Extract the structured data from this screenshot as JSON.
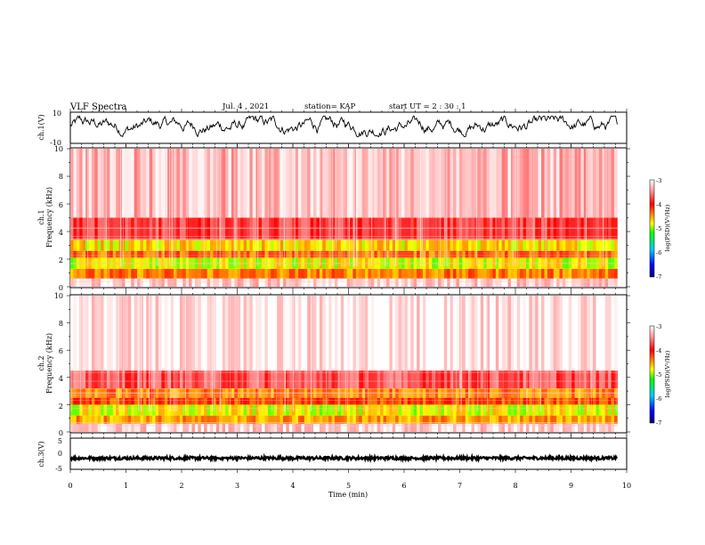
{
  "header": {
    "title": "VLF Spectra",
    "date": "Jul. 4 , 2021",
    "station": "station= KAP",
    "start": "start UT =  2 : 30 : 1"
  },
  "panels": [
    {
      "id": "ch1-wave",
      "ylabel": "ch.1(V)",
      "yticks": [
        "10",
        "-10"
      ]
    },
    {
      "id": "ch1-spec",
      "ylabel_top": "ch.1",
      "ylabel": "Frequency (kHz)",
      "yticks": [
        "10",
        "8",
        "6",
        "4",
        "2",
        "0"
      ],
      "colorbar": {
        "label": "log(PSD)(V²/Hz)",
        "ticks": [
          "-3",
          "-4",
          "-5",
          "-6",
          "-7"
        ]
      }
    },
    {
      "id": "ch2-spec",
      "ylabel_top": "ch.2",
      "ylabel": "Frequency (kHz)",
      "yticks": [
        "10",
        "8",
        "6",
        "4",
        "2",
        "0"
      ],
      "colorbar": {
        "label": "log(PSD)(V²/Hz)",
        "ticks": [
          "-3",
          "-4",
          "-5",
          "-6",
          "-7"
        ]
      }
    },
    {
      "id": "ch3-wave",
      "ylabel": "ch.3(V)",
      "yticks": [
        "5",
        "0",
        "-5"
      ]
    }
  ],
  "xaxis": {
    "label": "Time (min)",
    "ticks": [
      "0",
      "1",
      "2",
      "3",
      "4",
      "5",
      "6",
      "7",
      "8",
      "9",
      "10"
    ]
  },
  "colors": {
    "scale": [
      "#000080",
      "#0000ff",
      "#00c8ff",
      "#00ff00",
      "#ffff00",
      "#ff8000",
      "#ff0000",
      "#ffffff"
    ],
    "band_red": "#ff1a1a",
    "trace": "#000000"
  },
  "chart_data": [
    {
      "type": "line",
      "title": "VLF Spectra",
      "ylabel": "ch.1(V)",
      "xlabel": "Time (min)",
      "xlim": [
        0,
        10
      ],
      "ylim": [
        -10,
        10
      ],
      "data_end_min": 9.83,
      "trace": "noisy waveform, approx. -6 to 8 V"
    },
    {
      "type": "heatmap",
      "ylabel": "Frequency (kHz)",
      "xlabel": "Time (min)",
      "xlim": [
        0,
        10
      ],
      "ylim": [
        0,
        10
      ],
      "zlabel": "log(PSD)(V²/Hz)",
      "zlim": [
        -7,
        -3
      ],
      "bands": [
        {
          "f_kHz": [
            0,
            0.6
          ],
          "log_psd": -3.2
        },
        {
          "f_kHz": [
            0.6,
            1.3
          ],
          "log_psd": -4.4
        },
        {
          "f_kHz": [
            1.3,
            2.1
          ],
          "log_psd": -4.8
        },
        {
          "f_kHz": [
            2.1,
            2.6
          ],
          "log_psd": -4.3
        },
        {
          "f_kHz": [
            2.6,
            3.4
          ],
          "log_psd": -4.7
        },
        {
          "f_kHz": [
            3.4,
            5.0
          ],
          "log_psd": -3.8
        },
        {
          "f_kHz": [
            5.0,
            10.0
          ],
          "log_psd": -3.3
        }
      ]
    },
    {
      "type": "heatmap",
      "ylabel": "Frequency (kHz)",
      "xlabel": "Time (min)",
      "xlim": [
        0,
        10
      ],
      "ylim": [
        0,
        10
      ],
      "zlabel": "log(PSD)(V²/Hz)",
      "zlim": [
        -7,
        -3
      ],
      "bands": [
        {
          "f_kHz": [
            0,
            0.6
          ],
          "log_psd": -3.2
        },
        {
          "f_kHz": [
            0.6,
            1.2
          ],
          "log_psd": -4.5
        },
        {
          "f_kHz": [
            1.2,
            2.0
          ],
          "log_psd": -4.8
        },
        {
          "f_kHz": [
            2.0,
            2.5
          ],
          "log_psd": -4.2
        },
        {
          "f_kHz": [
            2.5,
            3.2
          ],
          "log_psd": -4.4
        },
        {
          "f_kHz": [
            3.2,
            4.5
          ],
          "log_psd": -3.7
        },
        {
          "f_kHz": [
            4.5,
            10.0
          ],
          "log_psd": -3.1
        }
      ]
    },
    {
      "type": "line",
      "ylabel": "ch.3(V)",
      "xlabel": "Time (min)",
      "xlim": [
        0,
        10
      ],
      "ylim": [
        -5,
        5
      ],
      "data_end_min": 9.83,
      "trace": "near-constant, approx. -1.5 V with small ripple"
    }
  ]
}
